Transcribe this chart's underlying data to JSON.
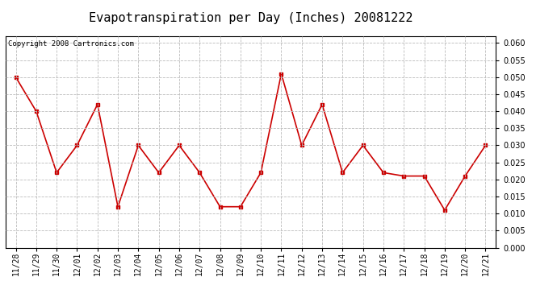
{
  "title": "Evapotranspiration per Day (Inches) 20081222",
  "copyright_text": "Copyright 2008 Cartronics.com",
  "labels": [
    "11/28",
    "11/29",
    "11/30",
    "12/01",
    "12/02",
    "12/03",
    "12/04",
    "12/05",
    "12/06",
    "12/07",
    "12/08",
    "12/09",
    "12/10",
    "12/11",
    "12/12",
    "12/13",
    "12/14",
    "12/15",
    "12/16",
    "12/17",
    "12/18",
    "12/19",
    "12/20",
    "12/21"
  ],
  "values": [
    0.05,
    0.04,
    0.022,
    0.03,
    0.042,
    0.012,
    0.03,
    0.022,
    0.03,
    0.022,
    0.012,
    0.012,
    0.022,
    0.051,
    0.03,
    0.042,
    0.022,
    0.03,
    0.022,
    0.021,
    0.021,
    0.011,
    0.021,
    0.03
  ],
  "line_color": "#cc0000",
  "marker": "s",
  "marker_size": 2.5,
  "line_width": 1.2,
  "ylim": [
    0.0,
    0.062
  ],
  "yticks": [
    0.0,
    0.005,
    0.01,
    0.015,
    0.02,
    0.025,
    0.03,
    0.035,
    0.04,
    0.045,
    0.05,
    0.055,
    0.06
  ],
  "bg_color": "#ffffff",
  "plot_bg_color": "#ffffff",
  "grid_color": "#bbbbbb",
  "title_fontsize": 11,
  "tick_fontsize": 7,
  "copyright_fontsize": 6.5
}
